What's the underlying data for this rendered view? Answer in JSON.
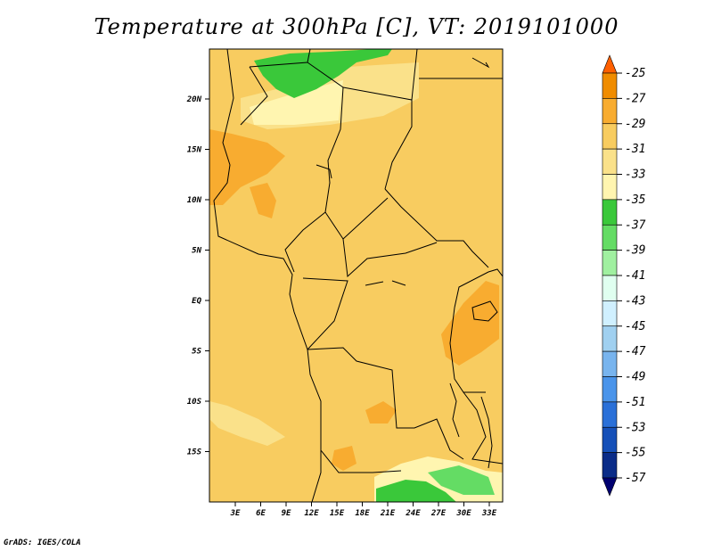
{
  "title": "Temperature at 300hPa [C], VT: 2019101000",
  "credit": "GrADS: IGES/COLA",
  "map": {
    "lat_labels": [
      "20N",
      "15N",
      "10N",
      "5N",
      "EQ",
      "5S",
      "10S",
      "15S"
    ],
    "lon_labels": [
      "3E",
      "6E",
      "9E",
      "12E",
      "15E",
      "18E",
      "21E",
      "24E",
      "27E",
      "30E",
      "33E"
    ]
  },
  "colorbar": {
    "labels": [
      "-25",
      "-27",
      "-29",
      "-31",
      "-33",
      "-35",
      "-37",
      "-39",
      "-41",
      "-43",
      "-45",
      "-47",
      "-49",
      "-51",
      "-53",
      "-55",
      "-57"
    ],
    "colors": [
      "#ff6000",
      "#f08c00",
      "#f8ac30",
      "#f8cc60",
      "#fae18a",
      "#fff5b0",
      "#3ac83a",
      "#64dc64",
      "#a0f0a0",
      "#e0fff0",
      "#d0f0ff",
      "#a0d0f0",
      "#78b4ee",
      "#4a94ea",
      "#2a70d8",
      "#1650b8",
      "#0a2c88",
      "#000070"
    ]
  },
  "colors": {
    "dominant": "#f8cc60",
    "warm": "#f8ac30",
    "cool": "#fae18a",
    "coolest": "#fff5b0",
    "green": "#3ac83a",
    "green_light": "#64dc64"
  }
}
